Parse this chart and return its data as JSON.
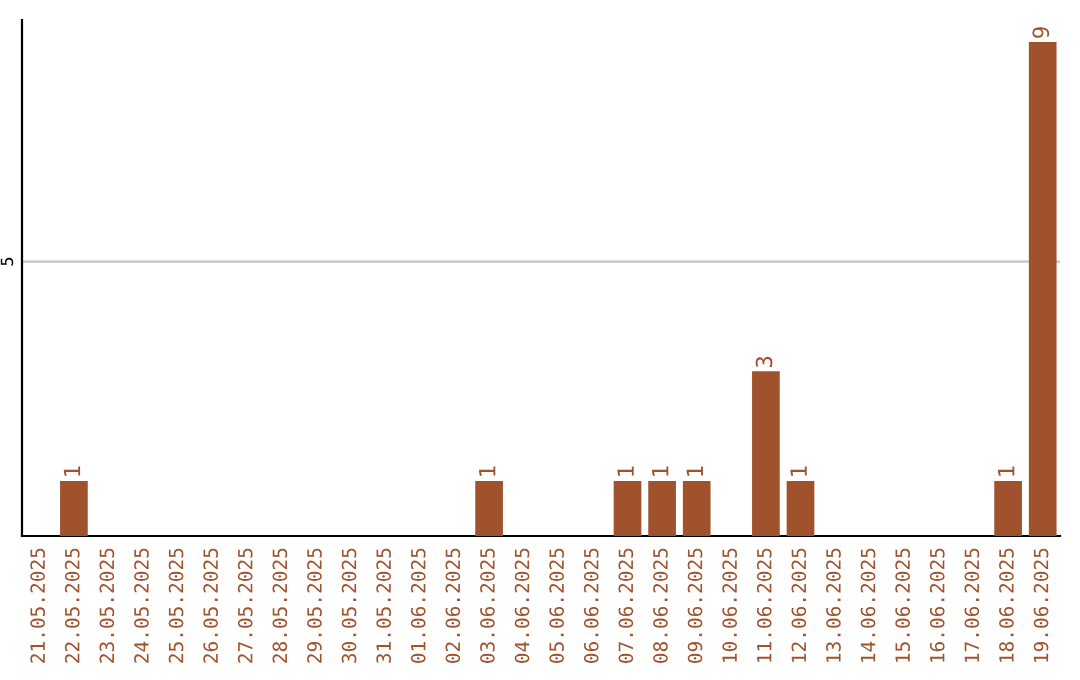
{
  "chart_data": {
    "type": "bar",
    "categories": [
      "21.05.2025",
      "22.05.2025",
      "23.05.2025",
      "24.05.2025",
      "25.05.2025",
      "26.05.2025",
      "27.05.2025",
      "28.05.2025",
      "29.05.2025",
      "30.05.2025",
      "31.05.2025",
      "01.06.2025",
      "02.06.2025",
      "03.06.2025",
      "04.06.2025",
      "05.06.2025",
      "06.06.2025",
      "07.06.2025",
      "08.06.2025",
      "09.06.2025",
      "10.06.2025",
      "11.06.2025",
      "12.06.2025",
      "13.06.2025",
      "14.06.2025",
      "15.06.2025",
      "16.06.2025",
      "17.06.2025",
      "18.06.2025",
      "19.06.2025"
    ],
    "values": [
      0,
      1,
      0,
      0,
      0,
      0,
      0,
      0,
      0,
      0,
      0,
      0,
      0,
      1,
      0,
      0,
      0,
      1,
      1,
      1,
      0,
      3,
      1,
      0,
      0,
      0,
      0,
      0,
      1,
      9
    ],
    "value_labels": [
      null,
      "1",
      null,
      null,
      null,
      null,
      null,
      null,
      null,
      null,
      null,
      null,
      null,
      "1",
      null,
      null,
      null,
      "1",
      "1",
      "1",
      null,
      "3",
      "1",
      null,
      null,
      null,
      null,
      null,
      "1",
      "9"
    ],
    "color": "#a0522d",
    "ylim": [
      0,
      9.4
    ],
    "yticks": [
      5
    ],
    "grid": "y"
  }
}
